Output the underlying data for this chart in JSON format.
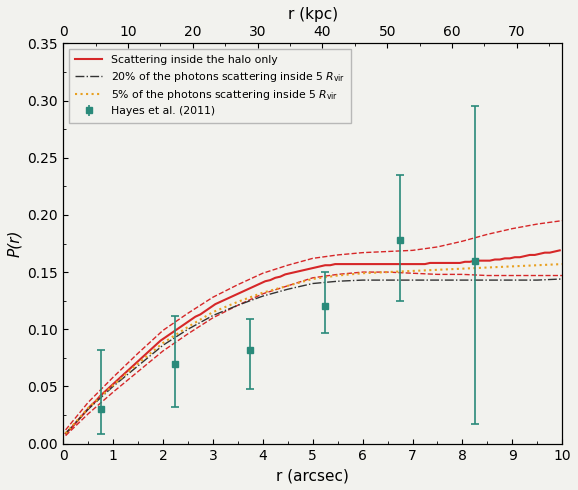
{
  "xlabel_bottom": "r (arcsec)",
  "xlabel_top": "r (kpc)",
  "ylabel": "P(r)",
  "xlim_arcsec": [
    0,
    10
  ],
  "ylim": [
    0.0,
    0.35
  ],
  "arcsec_to_kpc": 7.7,
  "yticks": [
    0.0,
    0.05,
    0.1,
    0.15,
    0.2,
    0.25,
    0.3,
    0.35
  ],
  "xticks_bottom": [
    0,
    1,
    2,
    3,
    4,
    5,
    6,
    7,
    8,
    9,
    10
  ],
  "xticks_top": [
    0,
    10,
    20,
    30,
    40,
    50,
    60,
    70
  ],
  "solid_red_x": [
    0.05,
    0.15,
    0.25,
    0.35,
    0.45,
    0.55,
    0.65,
    0.75,
    0.85,
    0.95,
    1.05,
    1.15,
    1.25,
    1.35,
    1.45,
    1.55,
    1.65,
    1.75,
    1.85,
    1.95,
    2.05,
    2.15,
    2.25,
    2.35,
    2.45,
    2.55,
    2.65,
    2.75,
    2.85,
    2.95,
    3.05,
    3.15,
    3.25,
    3.35,
    3.45,
    3.55,
    3.65,
    3.75,
    3.85,
    3.95,
    4.05,
    4.15,
    4.25,
    4.35,
    4.45,
    4.55,
    4.65,
    4.75,
    4.85,
    4.95,
    5.05,
    5.15,
    5.25,
    5.35,
    5.45,
    5.55,
    5.65,
    5.75,
    5.85,
    5.95,
    6.05,
    6.15,
    6.25,
    6.35,
    6.45,
    6.55,
    6.65,
    6.75,
    6.85,
    6.95,
    7.05,
    7.15,
    7.25,
    7.35,
    7.45,
    7.55,
    7.65,
    7.75,
    7.85,
    7.95,
    8.05,
    8.15,
    8.25,
    8.35,
    8.45,
    8.55,
    8.65,
    8.75,
    8.85,
    8.95,
    9.05,
    9.15,
    9.25,
    9.35,
    9.45,
    9.55,
    9.65,
    9.75,
    9.85,
    9.95
  ],
  "solid_red_y": [
    0.009,
    0.013,
    0.018,
    0.023,
    0.028,
    0.033,
    0.037,
    0.042,
    0.046,
    0.05,
    0.054,
    0.058,
    0.062,
    0.066,
    0.07,
    0.074,
    0.078,
    0.082,
    0.086,
    0.09,
    0.093,
    0.096,
    0.099,
    0.102,
    0.105,
    0.108,
    0.111,
    0.113,
    0.116,
    0.119,
    0.122,
    0.124,
    0.126,
    0.128,
    0.13,
    0.132,
    0.134,
    0.136,
    0.138,
    0.14,
    0.142,
    0.143,
    0.145,
    0.146,
    0.148,
    0.149,
    0.15,
    0.151,
    0.152,
    0.153,
    0.154,
    0.155,
    0.156,
    0.156,
    0.157,
    0.157,
    0.157,
    0.157,
    0.157,
    0.157,
    0.157,
    0.157,
    0.157,
    0.157,
    0.157,
    0.157,
    0.157,
    0.157,
    0.157,
    0.157,
    0.157,
    0.157,
    0.157,
    0.158,
    0.158,
    0.158,
    0.158,
    0.158,
    0.158,
    0.158,
    0.159,
    0.159,
    0.16,
    0.16,
    0.16,
    0.16,
    0.161,
    0.161,
    0.162,
    0.162,
    0.163,
    0.163,
    0.164,
    0.165,
    0.165,
    0.166,
    0.167,
    0.167,
    0.168,
    0.169
  ],
  "dashed_red_upper_x": [
    0.05,
    0.5,
    1.0,
    1.5,
    2.0,
    2.5,
    3.0,
    3.5,
    4.0,
    4.5,
    5.0,
    5.5,
    6.0,
    6.5,
    7.0,
    7.5,
    8.0,
    8.5,
    9.0,
    9.5,
    10.0
  ],
  "dashed_red_upper_y": [
    0.012,
    0.036,
    0.058,
    0.079,
    0.099,
    0.114,
    0.128,
    0.139,
    0.149,
    0.156,
    0.162,
    0.165,
    0.167,
    0.168,
    0.169,
    0.172,
    0.177,
    0.183,
    0.188,
    0.192,
    0.195
  ],
  "dashed_red_lower_x": [
    0.05,
    0.5,
    1.0,
    1.5,
    2.0,
    2.5,
    3.0,
    3.5,
    4.0,
    4.5,
    5.0,
    5.5,
    6.0,
    6.5,
    7.0,
    7.5,
    8.0,
    8.5,
    9.0,
    9.5,
    10.0
  ],
  "dashed_red_lower_y": [
    0.007,
    0.026,
    0.045,
    0.063,
    0.081,
    0.096,
    0.11,
    0.121,
    0.131,
    0.138,
    0.145,
    0.148,
    0.15,
    0.15,
    0.149,
    0.148,
    0.148,
    0.147,
    0.147,
    0.147,
    0.147
  ],
  "dashdot_black_x": [
    0.05,
    0.5,
    1.0,
    1.5,
    2.0,
    2.5,
    3.0,
    3.5,
    4.0,
    4.5,
    5.0,
    5.5,
    6.0,
    6.5,
    7.0,
    7.5,
    8.0,
    8.5,
    9.0,
    9.5,
    10.0
  ],
  "dashdot_black_y": [
    0.009,
    0.03,
    0.05,
    0.068,
    0.086,
    0.1,
    0.112,
    0.121,
    0.129,
    0.135,
    0.14,
    0.142,
    0.143,
    0.143,
    0.143,
    0.143,
    0.143,
    0.143,
    0.143,
    0.143,
    0.144
  ],
  "dotted_orange_x": [
    0.05,
    0.5,
    1.0,
    1.5,
    2.0,
    2.5,
    3.0,
    3.5,
    4.0,
    4.5,
    5.0,
    5.5,
    6.0,
    6.5,
    7.0,
    7.5,
    8.0,
    8.5,
    9.0,
    9.5,
    10.0
  ],
  "dotted_orange_y": [
    0.009,
    0.031,
    0.051,
    0.07,
    0.088,
    0.102,
    0.115,
    0.124,
    0.132,
    0.138,
    0.144,
    0.147,
    0.149,
    0.15,
    0.151,
    0.152,
    0.153,
    0.154,
    0.155,
    0.156,
    0.157
  ],
  "hayes_x": [
    0.75,
    2.25,
    3.75,
    5.25,
    6.75,
    8.25
  ],
  "hayes_y": [
    0.03,
    0.07,
    0.082,
    0.12,
    0.178,
    0.16
  ],
  "hayes_yerr_low": [
    0.022,
    0.038,
    0.034,
    0.023,
    0.053,
    0.143
  ],
  "hayes_yerr_high": [
    0.052,
    0.042,
    0.027,
    0.03,
    0.057,
    0.135
  ],
  "color_solid_red": "#d62728",
  "color_dashed_red": "#d62728",
  "color_dashdot_black": "#333333",
  "color_dotted_orange": "#e8a020",
  "color_hayes": "#2a8a7a",
  "legend_label_solid": "Scattering inside the halo only",
  "legend_label_dashdot": "20% of the photons scattering inside 5 $R_{\\rm vir}$",
  "legend_label_dotted": "5% of the photons scattering inside 5 $R_{\\rm vir}$",
  "legend_label_hayes": "Hayes et al. (2011)",
  "background_color": "#f2f2ee"
}
